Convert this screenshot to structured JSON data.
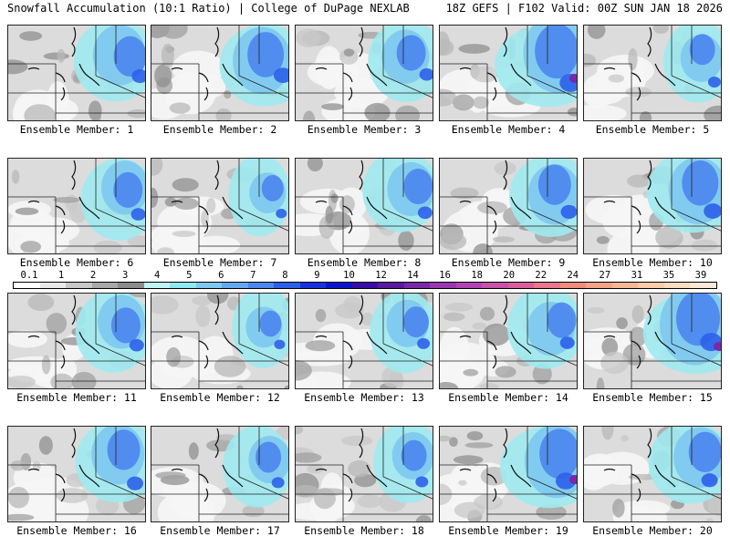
{
  "header": {
    "title_left": "Snowfall Accumulation (10:1 Ratio) | College of DuPage NEXLAB",
    "title_right": "18Z GEFS | F102 Valid: 00Z SUN JAN 18 2026"
  },
  "members": [
    {
      "label": "Ensemble Member: 1"
    },
    {
      "label": "Ensemble Member: 2"
    },
    {
      "label": "Ensemble Member: 3"
    },
    {
      "label": "Ensemble Member: 4"
    },
    {
      "label": "Ensemble Member: 5"
    },
    {
      "label": "Ensemble Member: 6"
    },
    {
      "label": "Ensemble Member: 7"
    },
    {
      "label": "Ensemble Member: 8"
    },
    {
      "label": "Ensemble Member: 9"
    },
    {
      "label": "Ensemble Member: 10"
    },
    {
      "label": "Ensemble Member: 11"
    },
    {
      "label": "Ensemble Member: 12"
    },
    {
      "label": "Ensemble Member: 13"
    },
    {
      "label": "Ensemble Member: 14"
    },
    {
      "label": "Ensemble Member: 15"
    },
    {
      "label": "Ensemble Member: 16"
    },
    {
      "label": "Ensemble Member: 17"
    },
    {
      "label": "Ensemble Member: 18"
    },
    {
      "label": "Ensemble Member: 19"
    },
    {
      "label": "Ensemble Member: 20"
    }
  ],
  "colorbar": {
    "labels": [
      "0.1",
      "1",
      "2",
      "3",
      "4",
      "5",
      "6",
      "7",
      "8",
      "9",
      "10",
      "12",
      "14",
      "16",
      "18",
      "20",
      "22",
      "24",
      "27",
      "31",
      "35",
      "39"
    ],
    "colors": [
      "#ffffff",
      "#e8e8e8",
      "#c8c8c8",
      "#a8a8a8",
      "#8c8c8c",
      "#bff5f5",
      "#8ee8f0",
      "#7ec8f0",
      "#64a8f0",
      "#4b86ee",
      "#2c60ea",
      "#1632e0",
      "#0a14d0",
      "#3a0aa8",
      "#5a1aa0",
      "#7a28a8",
      "#9a38b0",
      "#b244b4",
      "#c852a8",
      "#d8609a",
      "#e8768c",
      "#f08c7c",
      "#f4a484",
      "#f6b894",
      "#f8cca8",
      "#fadcc0",
      "#fce8d8"
    ]
  }
}
